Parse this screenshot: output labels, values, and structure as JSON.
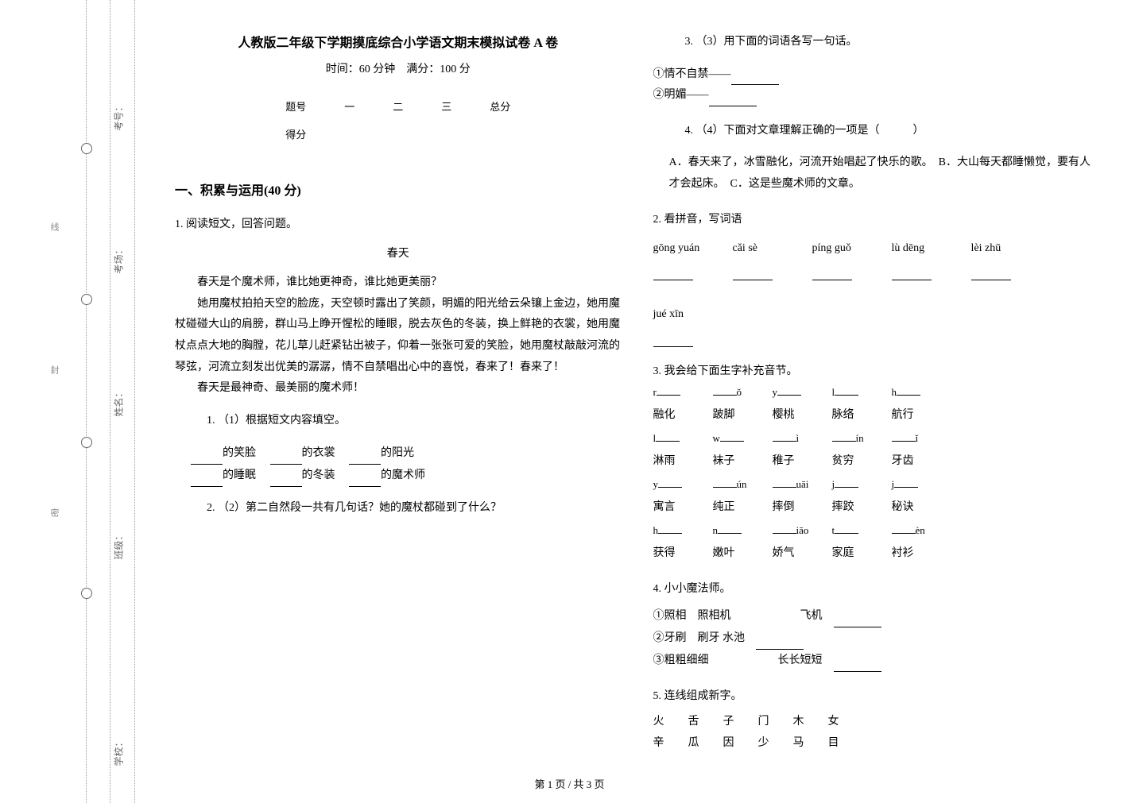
{
  "binding": {
    "labels": [
      "考号：",
      "考场：",
      "姓名：",
      "班级：",
      "学校："
    ],
    "seal_chars": [
      "密",
      "封",
      "线"
    ]
  },
  "header": {
    "title": "人教版二年级下学期摸底综合小学语文期末模拟试卷 A 卷",
    "subtitle": "时间：60 分钟　满分：100 分"
  },
  "score_table": {
    "row1": [
      "题号",
      "一",
      "二",
      "三",
      "总分"
    ],
    "row2_label": "得分"
  },
  "section1": {
    "title": "一、积累与运用(40 分)",
    "q1": {
      "stem": "1.  阅读短文，回答问题。",
      "passage_title": "春天",
      "passage": "春天是个魔术师，谁比她更神奇，谁比她更美丽？\n她用魔杖拍拍天空的脸庞，天空顿时露出了笑颜，明媚的阳光给云朵镶上金边，她用魔杖碰碰大山的肩膀，群山马上睁开惺松的睡眼，脱去灰色的冬装，换上鲜艳的衣裳，她用魔杖点点大地的胸膛，花儿草儿赶紧钻出被子，仰着一张张可爱的笑脸，她用魔杖敲敲河流的琴弦，河流立刻发出优美的潺潺，情不自禁唱出心中的喜悦，春来了！春来了！\n春天是最神奇、最美丽的魔术师！",
      "sub1": {
        "stem": "1. （1）根据短文内容填空。",
        "line1_parts": [
          "的笑脸",
          "的衣裳",
          "的阳光"
        ],
        "line2_parts": [
          "的睡眠",
          "的冬装",
          "的魔术师"
        ]
      },
      "sub2": "2. （2）第二自然段一共有几句话？她的魔杖都碰到了什么？",
      "sub3": {
        "stem": "3. （3）用下面的词语各写一句话。",
        "item1": "①情不自禁——",
        "item2": "②明媚——"
      },
      "sub4": {
        "stem": "4. （4）下面对文章理解正确的一项是（　　　）",
        "options": "A．春天来了，冰雪融化，河流开始唱起了快乐的歌。　B．大山每天都睡懒觉，要有人才会起床。　C．这是些魔术师的文章。"
      }
    },
    "q2": {
      "stem": "2.  看拼音，写词语",
      "pinyin": [
        "gōng yuán",
        "cǎi sè",
        "píng guǒ",
        "lù dēng",
        "lèi zhū",
        "jué xīn"
      ]
    },
    "q3": {
      "stem": "3.  我会给下面生字补充音节。",
      "grid": [
        [
          {
            "py": "r",
            "pos": "before",
            "ch": "融化"
          },
          {
            "py": "ǒ",
            "pos": "after",
            "ch": "跛脚"
          },
          {
            "py": "y",
            "pos": "before",
            "ch": "樱桃"
          },
          {
            "py": "l",
            "pos": "before",
            "ch": "脉络"
          },
          {
            "py": "h",
            "pos": "before",
            "ch": "航行"
          }
        ],
        [
          {
            "py": "l",
            "pos": "before",
            "ch": "淋雨"
          },
          {
            "py": "w",
            "pos": "before",
            "ch": "袜子"
          },
          {
            "py": "ì",
            "pos": "after",
            "ch": "稚子"
          },
          {
            "py": "ín",
            "pos": "after",
            "ch": "贫穷"
          },
          {
            "py": "ǐ",
            "pos": "after",
            "ch": "牙齿"
          }
        ],
        [
          {
            "py": "y",
            "pos": "before",
            "ch": "寓言"
          },
          {
            "py": "ún",
            "pos": "after",
            "ch": "纯正"
          },
          {
            "py": "uāi",
            "pos": "after",
            "ch": "摔倒"
          },
          {
            "py": "j",
            "pos": "before",
            "ch": "摔跤"
          },
          {
            "py": "j",
            "pos": "before",
            "ch": "秘诀"
          }
        ],
        [
          {
            "py": "h",
            "pos": "before",
            "ch": "获得"
          },
          {
            "py": "n",
            "pos": "before",
            "ch": "嫩叶"
          },
          {
            "py": "iāo",
            "pos": "after",
            "ch": "娇气"
          },
          {
            "py": "t",
            "pos": "before",
            "ch": "家庭"
          },
          {
            "py": "èn",
            "pos": "after",
            "ch": "衬衫"
          }
        ]
      ]
    },
    "q4": {
      "stem": "4.  小小魔法师。",
      "line1_a": "①照相　照相机",
      "line1_b": "飞机",
      "line2": "②牙刷　刷牙 水池",
      "line3_a": "③粗粗细细",
      "line3_b": "长长短短"
    },
    "q5": {
      "stem": "5.  连线组成新字。",
      "row1": [
        "火",
        "舌",
        "子",
        "门",
        "木",
        "女"
      ],
      "row2": [
        "辛",
        "瓜",
        "因",
        "少",
        "马",
        "目"
      ]
    }
  },
  "footer": "第 1 页  /  共 3 页"
}
